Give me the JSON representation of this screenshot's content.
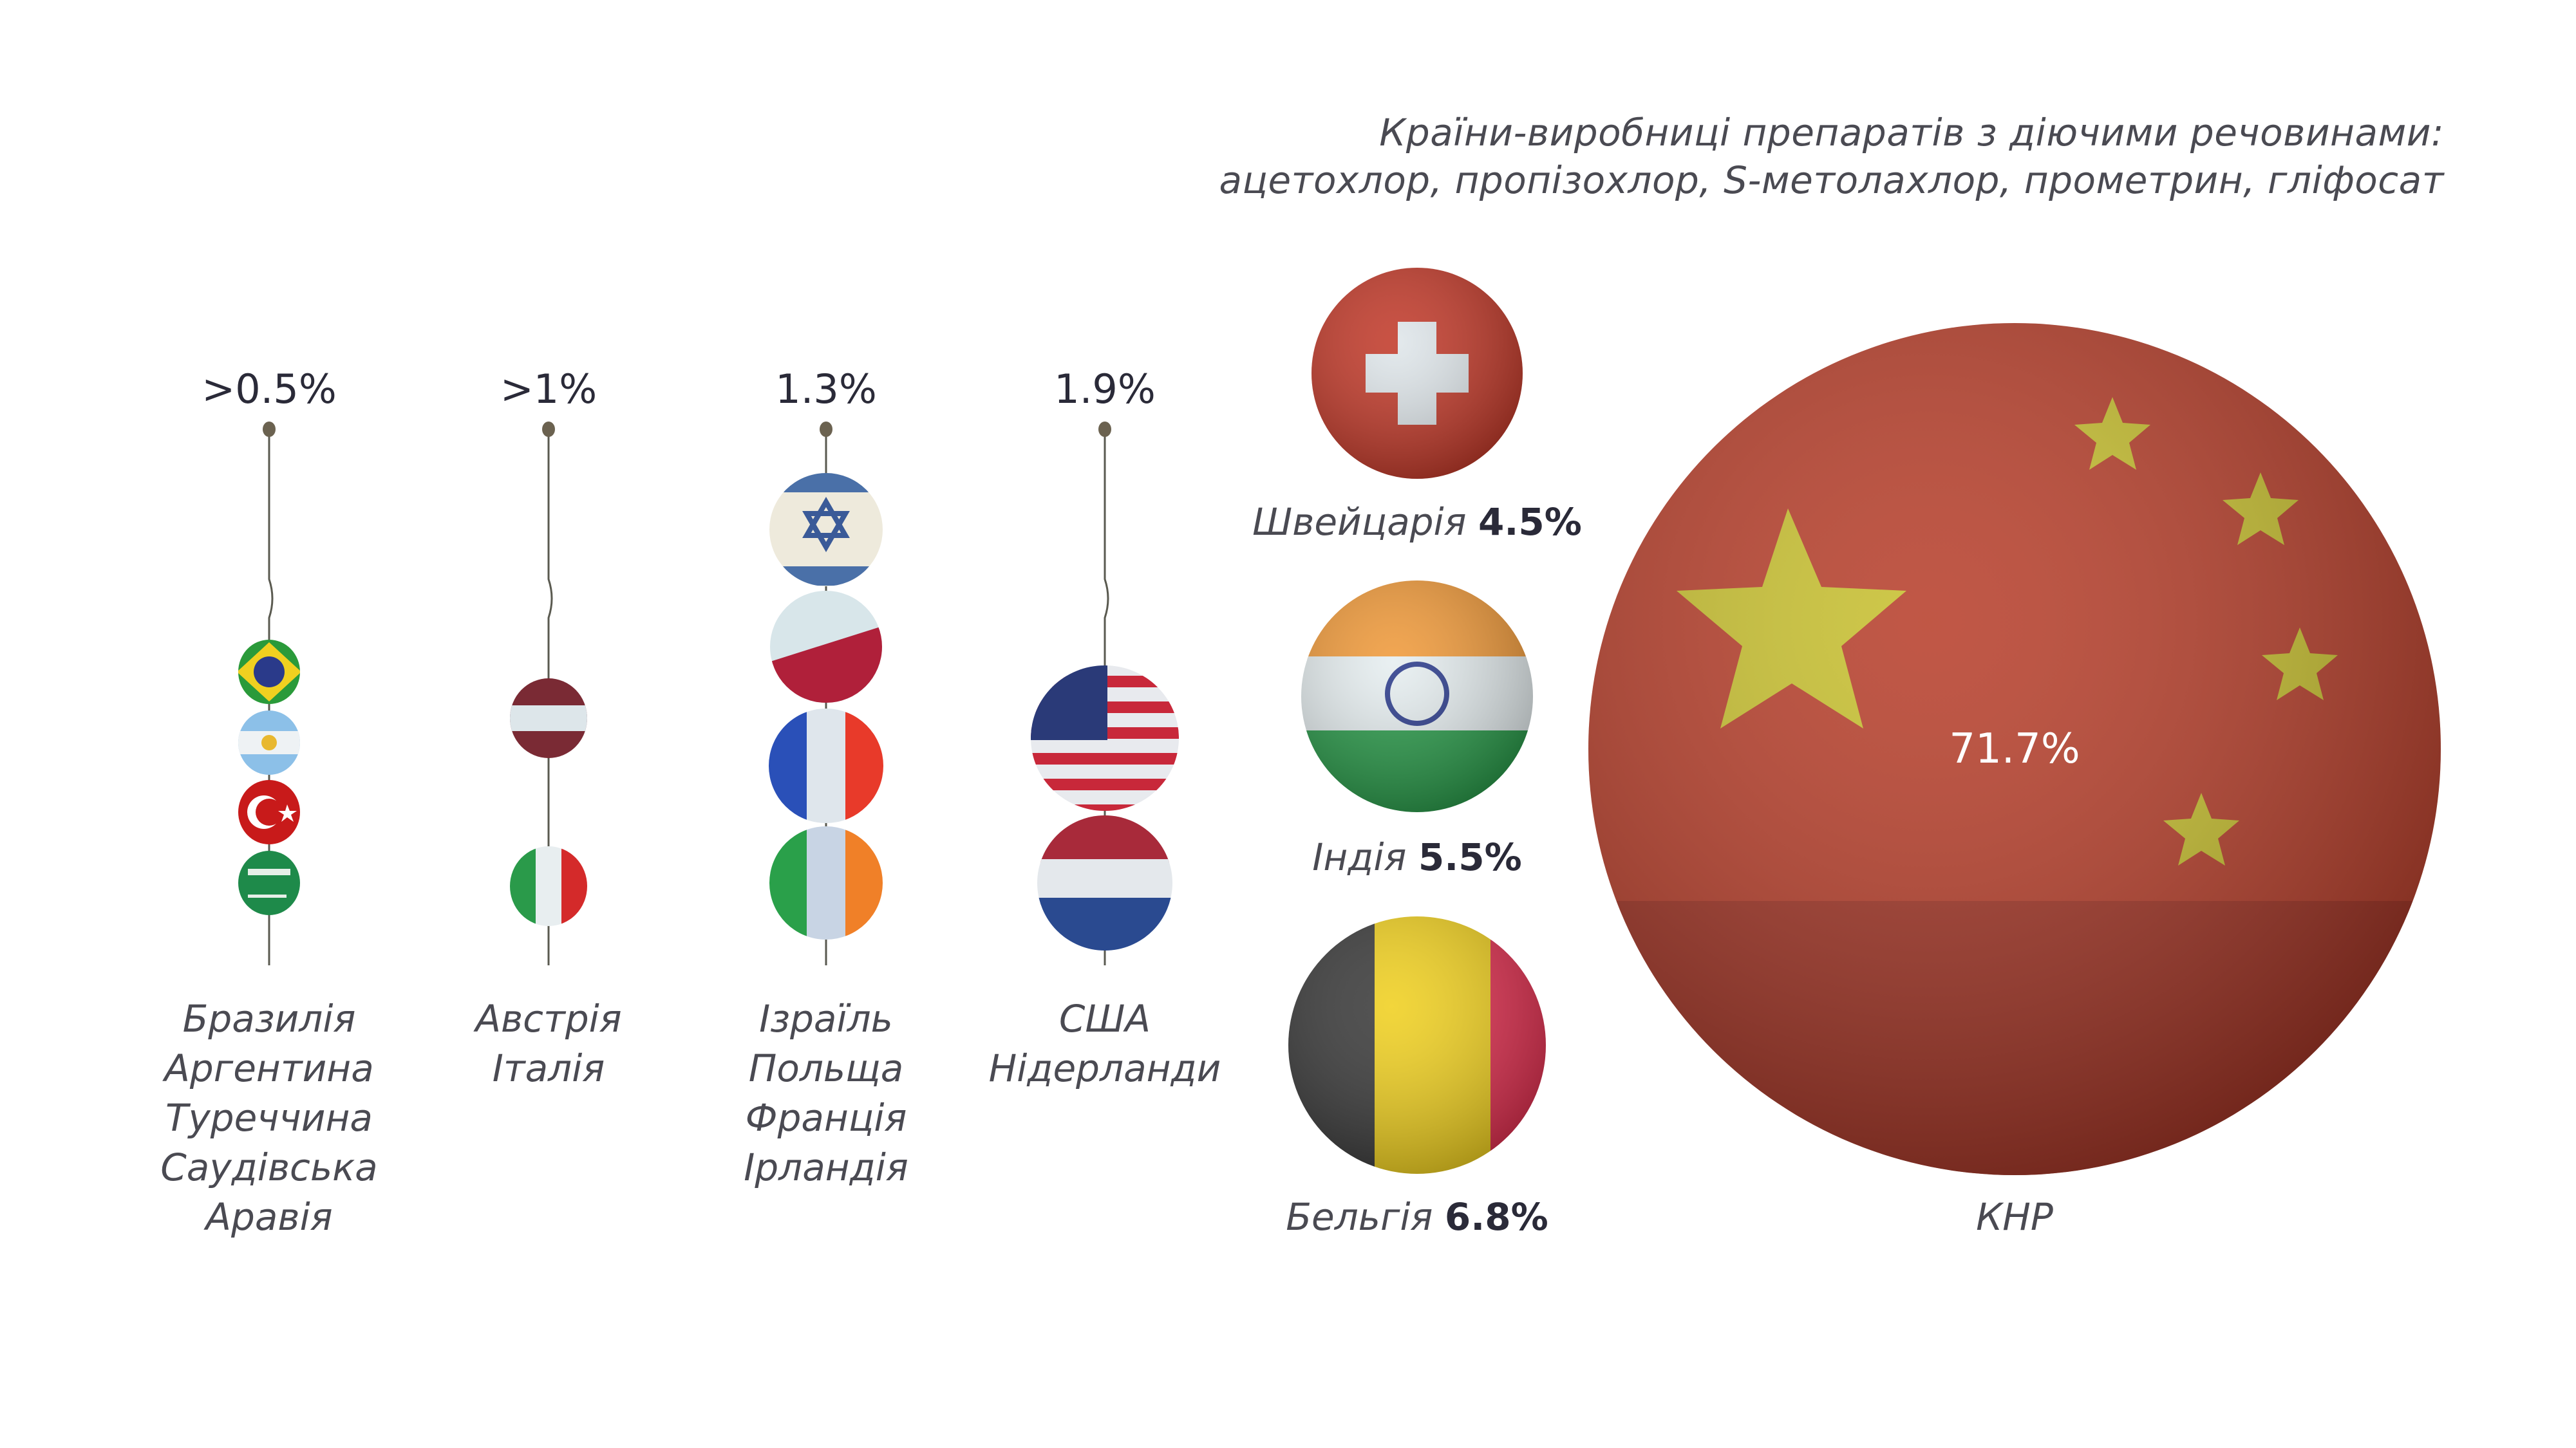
{
  "title": {
    "line1": "Країни-виробниці препаратів з діючими речовинами:",
    "line2": "ацетохлор, пропізохлор, S-метолахлор, прометрин, гліфосат"
  },
  "chart_data": {
    "type": "bubble",
    "title": "Країни-виробниці препаратів з діючими речовинами: ацетохлор, пропізохлор, S-метолахлор, прометрин, гліфосат",
    "groups": [
      {
        "share_label": ">0.5%",
        "countries": [
          "Бразилія",
          "Аргентина",
          "Туреччина",
          "Саудівська",
          "Аравія"
        ]
      },
      {
        "share_label": ">1%",
        "countries": [
          "Австрія",
          "Італія"
        ]
      },
      {
        "share_label": "1.3%",
        "countries": [
          "Ізраїль",
          "Польща",
          "Франція",
          "Ірландія"
        ]
      },
      {
        "share_label": "1.9%",
        "countries": [
          "США",
          "Нідерланди"
        ]
      }
    ],
    "singles": [
      {
        "country": "Швейцарія",
        "share_label": "4.5%",
        "value": 4.5
      },
      {
        "country": "Індія",
        "share_label": "5.5%",
        "value": 5.5
      },
      {
        "country": "Бельгія",
        "share_label": "6.8%",
        "value": 6.8
      },
      {
        "country": "КНР",
        "share_label": "71.7%",
        "value": 71.7
      }
    ]
  },
  "colors": {
    "text": "#4a4a52",
    "pin": "#6b6250",
    "china_red": "#b8402c",
    "china_star": "#c8c030"
  }
}
